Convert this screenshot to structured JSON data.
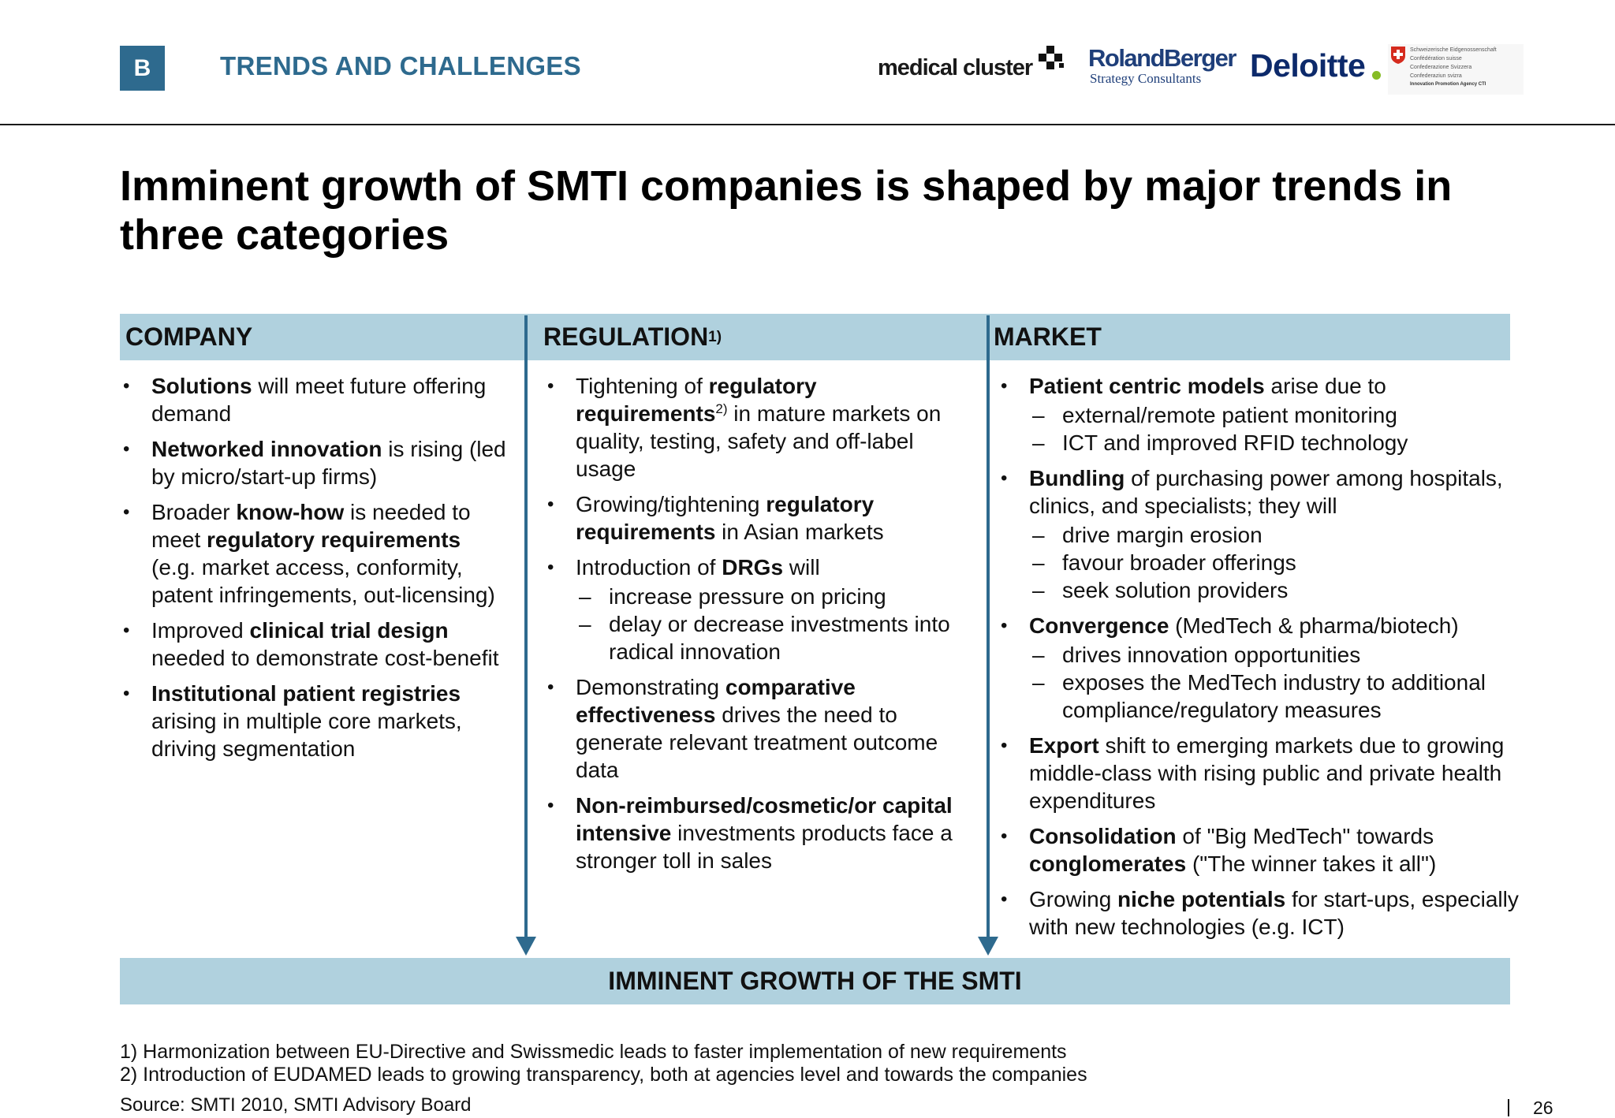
{
  "header": {
    "section_letter": "B",
    "section_title": "TRENDS AND CHALLENGES",
    "logos": {
      "medical_cluster": "medical cluster",
      "roland_berger_name": "RolandBerger",
      "roland_berger_sub": "Strategy Consultants",
      "deloitte": "Deloitte",
      "swiss_lines": [
        "Schweizerische Eidgenossenschaft",
        "Confédération suisse",
        "Confederazione Svizzera",
        "Confederaziun svizra"
      ],
      "swiss_agency": "Innovation Promotion Agency CTI"
    }
  },
  "title": "Imminent growth of SMTI companies is shaped by major trends in three categories",
  "columns": {
    "company": {
      "heading": "COMPANY",
      "items": [
        {
          "b1": "Solutions",
          "t1": " will meet future offering demand"
        },
        {
          "b1": "Networked innovation",
          "t1": " is rising (led by micro/start-up firms)"
        },
        {
          "t0": "Broader ",
          "b1": "know-how",
          "t1": " is needed to meet ",
          "b2": "regulatory requirements",
          "t2": " (e.g. market access, conformity, patent infringements, out-licensing)"
        },
        {
          "t0": "Improved ",
          "b1": "clinical trial design",
          "t1": " needed to demonstrate cost-benefit"
        },
        {
          "b1": "Institutional patient registries",
          "t1": " arising in multiple core markets, driving segmentation"
        }
      ]
    },
    "regulation": {
      "heading": "REGULATION",
      "heading_note": "1)",
      "items": [
        {
          "t0": "Tightening of ",
          "b1": "regulatory requirements",
          "sup": "2)",
          "t1": " in mature markets on quality, testing, safety and off-label usage"
        },
        {
          "t0": "Growing/tightening ",
          "b1": "regulatory requirements",
          "t1": " in Asian markets"
        },
        {
          "t0": "Introduction of ",
          "b1": "DRGs",
          "t1": " will",
          "subs": [
            "increase pressure on pricing",
            "delay or decrease investments into radical innovation"
          ]
        },
        {
          "t0": "Demonstrating ",
          "b1": "comparative effectiveness",
          "t1": " drives the need to generate relevant treatment outcome data"
        },
        {
          "b1": "Non-reimbursed/cosmetic/or capital intensive",
          "t1": " investments products face a stronger toll in sales"
        }
      ]
    },
    "market": {
      "heading": "MARKET",
      "items": [
        {
          "b1": "Patient centric models",
          "t1": " arise due to",
          "subs": [
            "external/remote patient monitoring",
            "ICT and improved RFID technology"
          ]
        },
        {
          "b1": "Bundling",
          "t1": " of purchasing power among hospitals, clinics, and specialists; they will",
          "subs": [
            "drive margin erosion",
            "favour broader offerings",
            "seek solution providers"
          ]
        },
        {
          "b1": "Convergence",
          "t1": " (MedTech & pharma/biotech)",
          "subs": [
            "drives innovation opportunities",
            "exposes the MedTech industry to additional compliance/regulatory measures"
          ]
        },
        {
          "b1": "Export",
          "t1": " shift to emerging markets due to growing middle-class with rising public and private health expenditures"
        },
        {
          "b1": "Consolidation",
          "t1": " of \"Big MedTech\" towards ",
          "b2": "conglomerates",
          "t2": " (\"The winner takes it all\")"
        },
        {
          "t0": "Growing ",
          "b1": "niche potentials",
          "t1": " for start-ups, especially with new technologies (e.g. ICT)"
        }
      ]
    }
  },
  "growth_band": "IMMINENT GROWTH OF THE SMTI",
  "footnotes": [
    "1) Harmonization between EU-Directive and Swissmedic leads to faster implementation of new requirements",
    "2) Introduction of EUDAMED leads to growing transparency, both at agencies level and towards the companies"
  ],
  "source": "Source:  SMTI 2010, SMTI Advisory Board",
  "page_number": "26",
  "colors": {
    "accent_blue": "#2e6a8e",
    "band_light_blue": "#b0d1de",
    "deloitte_green": "#86bc25",
    "swiss_red": "#d52b1e"
  }
}
